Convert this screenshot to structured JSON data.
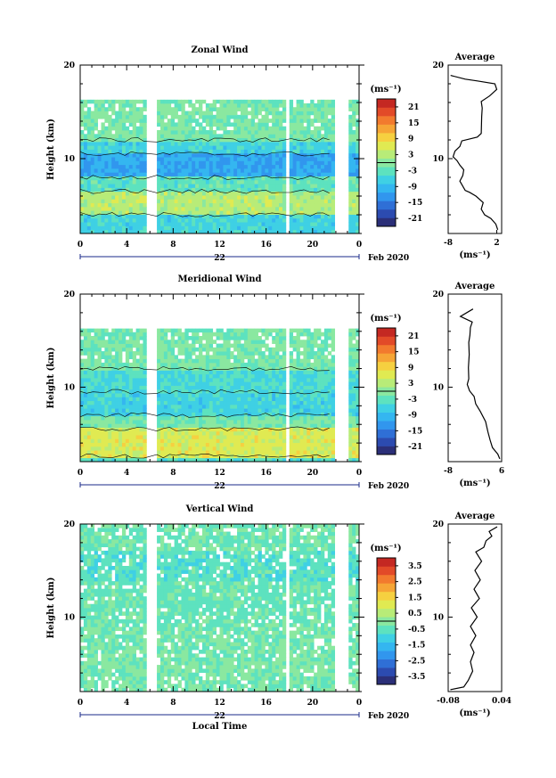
{
  "chart_data": [
    {
      "type": "heatmap",
      "title": "Zonal Wind",
      "ylabel": "Height (km)",
      "ylim": [
        2,
        20
      ],
      "yticks": [
        "10",
        "20"
      ],
      "xlim": [
        0,
        24
      ],
      "xticks": [
        "0",
        "4",
        "8",
        "12",
        "16",
        "20",
        "0"
      ],
      "date_label": "22",
      "month_label": "Feb 2020",
      "colorbar": {
        "unit": "(ms⁻¹)",
        "ticks": [
          "21",
          "15",
          "9",
          "3",
          "-3",
          "-9",
          "-15",
          "-21"
        ],
        "range": [
          -24,
          24
        ]
      },
      "data_gaps": [
        [
          5.8,
          6.5
        ],
        [
          17.6,
          17.9
        ],
        [
          21.9,
          23.0
        ]
      ],
      "data_top_km": 16.3,
      "layers": [
        {
          "from": 2.0,
          "to": 4.0,
          "value": -6
        },
        {
          "from": 4.0,
          "to": 6.5,
          "value": 3
        },
        {
          "from": 6.5,
          "to": 8.0,
          "value": -3
        },
        {
          "from": 8.0,
          "to": 10.5,
          "value": -11
        },
        {
          "from": 10.5,
          "to": 12.0,
          "value": -6
        },
        {
          "from": 12.0,
          "to": 16.3,
          "value": -1
        }
      ],
      "average_profile": {
        "title": "Average",
        "xlabel": "(ms⁻¹)",
        "xlim": [
          -8,
          3
        ],
        "xticks": [
          "-8",
          "2"
        ],
        "ylim": [
          2,
          20
        ],
        "yticks": [
          "10",
          "20"
        ],
        "points": [
          [
            2.2,
            2.4
          ],
          [
            1.8,
            3.0
          ],
          [
            0.8,
            3.6
          ],
          [
            -0.5,
            4.0
          ],
          [
            -1.2,
            4.6
          ],
          [
            -0.8,
            5.3
          ],
          [
            -2.3,
            6.0
          ],
          [
            -3.6,
            6.4
          ],
          [
            -4.5,
            6.6
          ],
          [
            -5.6,
            7.6
          ],
          [
            -5.0,
            8.2
          ],
          [
            -4.8,
            8.8
          ],
          [
            -5.6,
            9.3
          ],
          [
            -6.2,
            9.8
          ],
          [
            -7.0,
            10.2
          ],
          [
            -6.6,
            10.8
          ],
          [
            -5.6,
            11.3
          ],
          [
            -5.2,
            11.9
          ],
          [
            -2.0,
            12.3
          ],
          [
            -1.2,
            12.7
          ],
          [
            -1.1,
            14.5
          ],
          [
            -1.0,
            15.4
          ],
          [
            -1.2,
            16.1
          ],
          [
            0.5,
            16.7
          ],
          [
            2.0,
            17.4
          ],
          [
            1.6,
            18.0
          ],
          [
            -2.0,
            18.3
          ],
          [
            -4.5,
            18.5
          ],
          [
            -7.5,
            18.9
          ]
        ]
      }
    },
    {
      "type": "heatmap",
      "title": "Meridional Wind",
      "ylabel": "Height (km)",
      "ylim": [
        2,
        20
      ],
      "yticks": [
        "10",
        "20"
      ],
      "xlim": [
        0,
        24
      ],
      "xticks": [
        "0",
        "4",
        "8",
        "12",
        "16",
        "20",
        "0"
      ],
      "date_label": "22",
      "month_label": "Feb 2020",
      "colorbar": {
        "unit": "(ms⁻¹)",
        "ticks": [
          "21",
          "15",
          "9",
          "3",
          "-3",
          "-9",
          "-15",
          "-21"
        ],
        "range": [
          -24,
          24
        ]
      },
      "data_gaps": [
        [
          5.8,
          6.5
        ],
        [
          17.6,
          17.9
        ],
        [
          21.9,
          23.0
        ]
      ],
      "data_top_km": 16.3,
      "layers": [
        {
          "from": 2.0,
          "to": 2.6,
          "value": -4
        },
        {
          "from": 2.6,
          "to": 5.5,
          "value": 6
        },
        {
          "from": 5.5,
          "to": 7.0,
          "value": -1
        },
        {
          "from": 7.0,
          "to": 9.5,
          "value": -6
        },
        {
          "from": 9.5,
          "to": 12.0,
          "value": -5
        },
        {
          "from": 12.0,
          "to": 16.3,
          "value": -1
        }
      ],
      "average_profile": {
        "title": "Average",
        "xlabel": "(ms⁻¹)",
        "xlim": [
          -8,
          6
        ],
        "xticks": [
          "-8",
          "6"
        ],
        "ylim": [
          2,
          20
        ],
        "yticks": [
          "10",
          "20"
        ],
        "points": [
          [
            5.5,
            2.3
          ],
          [
            5.0,
            2.8
          ],
          [
            3.6,
            3.5
          ],
          [
            3.0,
            4.3
          ],
          [
            2.4,
            5.2
          ],
          [
            1.8,
            6.3
          ],
          [
            0.4,
            7.4
          ],
          [
            -0.8,
            8.2
          ],
          [
            -1.2,
            9.0
          ],
          [
            -2.4,
            9.6
          ],
          [
            -3.0,
            10.3
          ],
          [
            -2.6,
            10.9
          ],
          [
            -2.7,
            12.1
          ],
          [
            -2.5,
            13.5
          ],
          [
            -2.6,
            14.8
          ],
          [
            -2.3,
            15.6
          ],
          [
            -2.2,
            16.4
          ],
          [
            -1.7,
            17.0
          ],
          [
            -4.8,
            17.6
          ],
          [
            -1.5,
            18.4
          ]
        ]
      }
    },
    {
      "type": "heatmap",
      "title": "Vertical Wind",
      "ylabel": "Height (km)",
      "xlabel": "Local Time",
      "ylim": [
        2,
        20
      ],
      "yticks": [
        "10",
        "20"
      ],
      "xlim": [
        0,
        24
      ],
      "xticks": [
        "0",
        "4",
        "8",
        "12",
        "16",
        "20",
        "0"
      ],
      "date_label": "22",
      "month_label": "Feb 2020",
      "colorbar": {
        "unit": "(ms⁻¹)",
        "ticks": [
          "3.5",
          "2.5",
          "1.5",
          "0.5",
          "-0.5",
          "-1.5",
          "-2.5",
          "-3.5"
        ],
        "range": [
          -4,
          4
        ]
      },
      "data_gaps": [
        [
          5.8,
          6.5
        ],
        [
          17.6,
          17.9
        ],
        [
          21.9,
          23.0
        ]
      ],
      "data_top_km": 20,
      "layers": [
        {
          "from": 2.0,
          "to": 9.0,
          "value": -0.2
        },
        {
          "from": 9.0,
          "to": 14.0,
          "value": -0.4
        },
        {
          "from": 14.0,
          "to": 17.0,
          "value": -0.6
        },
        {
          "from": 17.0,
          "to": 20.0,
          "value": -0.3
        }
      ],
      "average_profile": {
        "title": "Average",
        "xlabel": "(ms⁻¹)",
        "xlim": [
          -0.08,
          0.04
        ],
        "xticks": [
          "-0.08",
          "0.04"
        ],
        "ylim": [
          2,
          20
        ],
        "yticks": [
          "10",
          "20"
        ],
        "points": [
          [
            -0.075,
            2.2
          ],
          [
            -0.045,
            2.5
          ],
          [
            -0.035,
            3.2
          ],
          [
            -0.025,
            4.2
          ],
          [
            -0.03,
            5.2
          ],
          [
            -0.022,
            6.2
          ],
          [
            -0.03,
            7.0
          ],
          [
            -0.018,
            8.0
          ],
          [
            -0.03,
            9.0
          ],
          [
            -0.015,
            10.0
          ],
          [
            -0.028,
            11.0
          ],
          [
            -0.01,
            12.0
          ],
          [
            -0.022,
            13.0
          ],
          [
            -0.008,
            14.0
          ],
          [
            -0.02,
            15.0
          ],
          [
            -0.005,
            16.0
          ],
          [
            -0.018,
            17.0
          ],
          [
            0.0,
            17.5
          ],
          [
            0.005,
            18.2
          ],
          [
            0.018,
            18.7
          ],
          [
            0.012,
            19.2
          ],
          [
            0.03,
            19.7
          ]
        ]
      }
    }
  ]
}
